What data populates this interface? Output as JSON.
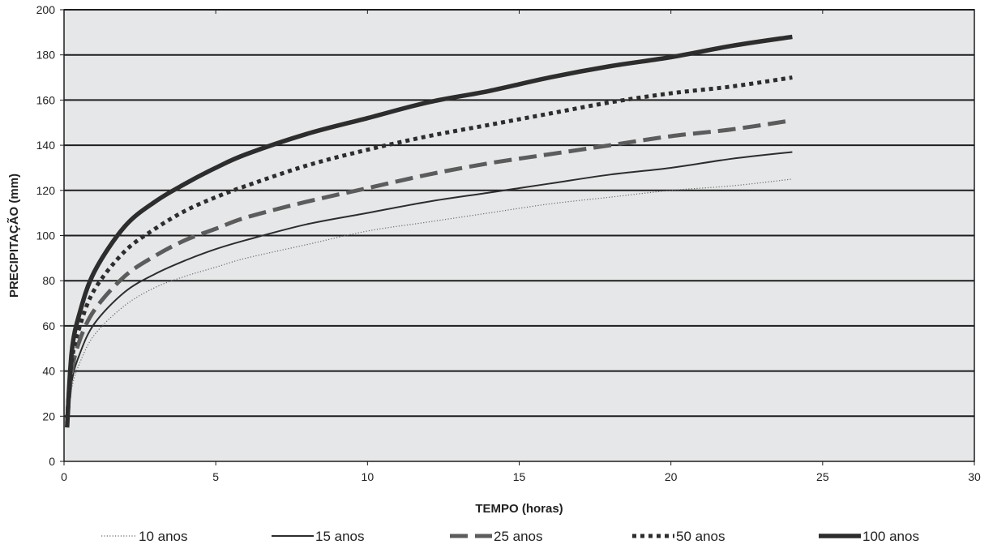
{
  "chart_data": {
    "type": "line",
    "xlabel": "TEMPO (horas)",
    "ylabel": "PRECIPITAÇÃO (mm)",
    "xlim": [
      0,
      30
    ],
    "ylim": [
      0,
      200
    ],
    "x_ticks": [
      0,
      5,
      10,
      15,
      20,
      25,
      30
    ],
    "y_ticks": [
      0,
      20,
      40,
      60,
      80,
      100,
      120,
      140,
      160,
      180,
      200
    ],
    "x_tick_labels": [
      "0",
      "5",
      "10",
      "15",
      "20",
      "25",
      "30"
    ],
    "y_tick_labels": [
      "0",
      "20",
      "40",
      "60",
      "80",
      "100",
      "120",
      "140",
      "160",
      "180",
      "200"
    ],
    "grid": "horizontal",
    "background_color": "#e6e7e9",
    "legend_position": "bottom",
    "x": [
      0.1,
      0.25,
      0.5,
      1,
      2,
      3,
      4,
      5,
      6,
      8,
      10,
      12,
      14,
      16,
      18,
      20,
      22,
      24
    ],
    "series": [
      {
        "name": "10 anos",
        "color": "#6a6a6a",
        "style": "thin-dotted",
        "values": [
          15,
          32,
          43,
          56,
          69,
          77,
          82,
          86,
          90,
          96,
          102,
          106,
          110,
          114,
          117,
          120,
          122,
          125
        ]
      },
      {
        "name": "15 anos",
        "color": "#2d2d2d",
        "style": "thin-solid",
        "values": [
          16,
          35,
          47,
          61,
          75,
          83,
          89,
          94,
          98,
          105,
          110,
          115,
          119,
          123,
          127,
          130,
          134,
          137
        ]
      },
      {
        "name": "25 anos",
        "color": "#5c5c5c",
        "style": "dashed",
        "values": [
          17,
          39,
          53,
          67,
          82,
          91,
          98,
          103,
          108,
          115,
          121,
          127,
          132,
          136,
          140,
          144,
          147,
          151
        ]
      },
      {
        "name": "50 anos",
        "color": "#2d2d2d",
        "style": "dotted",
        "values": [
          19,
          44,
          59,
          76,
          93,
          103,
          111,
          117,
          122,
          131,
          138,
          144,
          149,
          154,
          159,
          163,
          166,
          170
        ]
      },
      {
        "name": "100 anos",
        "color": "#2d2d2d",
        "style": "thick-solid",
        "values": [
          15,
          48,
          65,
          84,
          104,
          115,
          123,
          130,
          136,
          145,
          152,
          159,
          164,
          170,
          175,
          179,
          184,
          188
        ]
      }
    ]
  }
}
